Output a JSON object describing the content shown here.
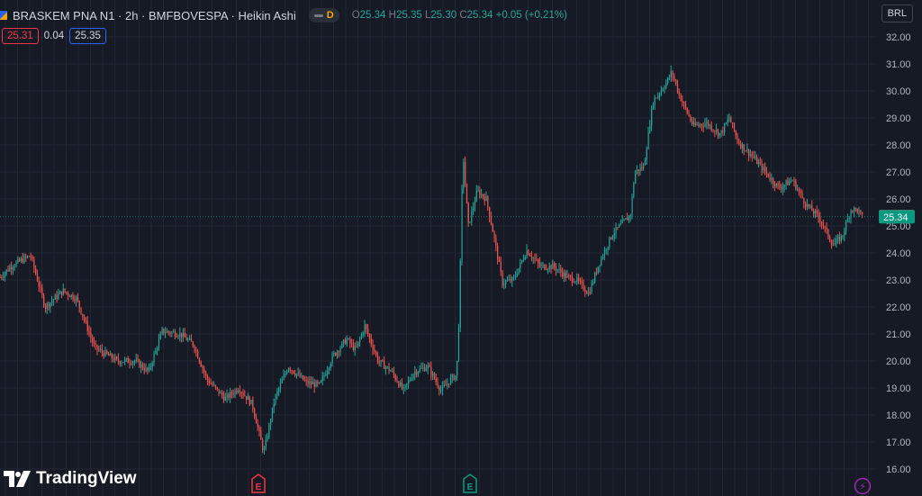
{
  "header": {
    "symbol": "BRASKEM PNA N1 · 2h · BMFBOVESPA · Heikin Ashi",
    "d_label": "D",
    "o_label": "O",
    "o_value": "25.34",
    "h_label": "H",
    "h_value": "25.35",
    "l_label": "L",
    "l_value": "25.30",
    "c_label": "C",
    "c_value": "25.34",
    "change": "+0.05 (+0.21%)"
  },
  "quote": {
    "bid": "25.31",
    "spread": "0.04",
    "ask": "25.35"
  },
  "currency": "BRL",
  "logo_text": "TradingView",
  "colors": {
    "up": "#26a69a",
    "down": "#ef5350",
    "bg": "#161a25",
    "grid": "#232632"
  },
  "chart_data": {
    "type": "candlestick",
    "style": "Heikin Ashi",
    "y_range": [
      15,
      32.4
    ],
    "y_ticks": [
      "16.00",
      "17.00",
      "18.00",
      "19.00",
      "20.00",
      "21.00",
      "22.00",
      "23.00",
      "24.00",
      "25.00",
      "26.00",
      "27.00",
      "28.00",
      "29.00",
      "30.00",
      "31.00",
      "32.00"
    ],
    "price_labels": [
      {
        "value": "25.35",
        "color": "#f23645"
      },
      {
        "value": "25.34",
        "color": "#089981"
      }
    ],
    "event_markers": [
      {
        "label": "E",
        "color": "#f23645"
      },
      {
        "label": "E",
        "color": "#089981"
      },
      {
        "label": "⚡",
        "color": "#9c27b0"
      }
    ],
    "path": [
      [
        0,
        23.1
      ],
      [
        12,
        23.5
      ],
      [
        22,
        23.7
      ],
      [
        34,
        23.9
      ],
      [
        50,
        22.0
      ],
      [
        70,
        22.6
      ],
      [
        85,
        22.3
      ],
      [
        105,
        20.5
      ],
      [
        130,
        20.0
      ],
      [
        150,
        20.0
      ],
      [
        165,
        19.6
      ],
      [
        180,
        21.1
      ],
      [
        200,
        21.0
      ],
      [
        215,
        20.6
      ],
      [
        230,
        19.3
      ],
      [
        250,
        18.6
      ],
      [
        265,
        19.0
      ],
      [
        280,
        18.4
      ],
      [
        293,
        16.6
      ],
      [
        305,
        18.6
      ],
      [
        320,
        19.8
      ],
      [
        340,
        19.2
      ],
      [
        355,
        19.1
      ],
      [
        370,
        20.2
      ],
      [
        385,
        20.8
      ],
      [
        395,
        20.4
      ],
      [
        405,
        21.3
      ],
      [
        420,
        20.0
      ],
      [
        435,
        19.6
      ],
      [
        448,
        18.9
      ],
      [
        460,
        19.6
      ],
      [
        475,
        19.8
      ],
      [
        490,
        18.9
      ],
      [
        500,
        19.3
      ],
      [
        507,
        19.5
      ],
      [
        510,
        21.8
      ],
      [
        514,
        27.8
      ],
      [
        520,
        25.0
      ],
      [
        530,
        26.3
      ],
      [
        540,
        26.0
      ],
      [
        548,
        24.7
      ],
      [
        558,
        22.9
      ],
      [
        570,
        23.0
      ],
      [
        585,
        24.1
      ],
      [
        600,
        23.5
      ],
      [
        615,
        23.5
      ],
      [
        630,
        23.1
      ],
      [
        640,
        23.0
      ],
      [
        654,
        22.5
      ],
      [
        665,
        23.6
      ],
      [
        680,
        24.7
      ],
      [
        700,
        25.4
      ],
      [
        705,
        27.0
      ],
      [
        715,
        27.2
      ],
      [
        725,
        29.6
      ],
      [
        740,
        30.3
      ],
      [
        746,
        30.7
      ],
      [
        755,
        29.8
      ],
      [
        770,
        28.7
      ],
      [
        785,
        28.8
      ],
      [
        800,
        28.4
      ],
      [
        810,
        29.0
      ],
      [
        820,
        28.1
      ],
      [
        835,
        27.6
      ],
      [
        850,
        27.0
      ],
      [
        865,
        26.4
      ],
      [
        880,
        26.7
      ],
      [
        895,
        25.8
      ],
      [
        910,
        25.3
      ],
      [
        925,
        24.3
      ],
      [
        935,
        24.6
      ],
      [
        945,
        25.6
      ],
      [
        952,
        25.6
      ],
      [
        958,
        25.3
      ]
    ]
  }
}
